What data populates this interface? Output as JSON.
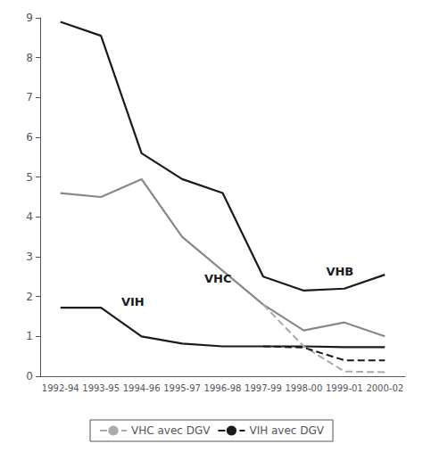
{
  "chart_data": {
    "type": "line",
    "categories": [
      "1992-94",
      "1993-95",
      "1994-96",
      "1995-97",
      "1996-98",
      "1997-99",
      "1998-00",
      "1999-01",
      "2000-02"
    ],
    "series": [
      {
        "color": "#1a1a1a",
        "line_style": "solid",
        "values": [
          8.9,
          8.55,
          5.6,
          4.95,
          4.6,
          2.5,
          2.15,
          2.2,
          2.55
        ]
      },
      {
        "color": "#888888",
        "line_style": "solid",
        "values": [
          4.6,
          4.5,
          4.95,
          3.5,
          2.65,
          1.8,
          1.15,
          1.35,
          1.0
        ]
      },
      {
        "color": "#1a1a1a",
        "line_style": "solid",
        "values": [
          1.72,
          1.72,
          1.0,
          0.82,
          0.75,
          0.75,
          0.75,
          0.73,
          0.73
        ]
      },
      {
        "name": "VHC avec DGV",
        "color": "#aaaaaa",
        "line_style": "dashed",
        "values": [
          null,
          null,
          null,
          null,
          null,
          1.8,
          0.75,
          0.12,
          0.1
        ]
      },
      {
        "name": "VIH avec DGV",
        "color": "#1a1a1a",
        "line_style": "dashed",
        "values": [
          null,
          null,
          null,
          null,
          null,
          0.75,
          0.72,
          0.4,
          0.4
        ]
      }
    ],
    "annotations": [
      {
        "text": "VHB",
        "x": 6.55,
        "y": 2.62
      },
      {
        "text": "VHC",
        "x": 3.55,
        "y": 2.45
      },
      {
        "text": "VIH",
        "x": 1.5,
        "y": 1.88
      }
    ],
    "ylim": [
      0,
      9
    ],
    "yticks": [
      0,
      1,
      2,
      3,
      4,
      5,
      6,
      7,
      8,
      9
    ],
    "grid": false,
    "legend": "bottom"
  }
}
